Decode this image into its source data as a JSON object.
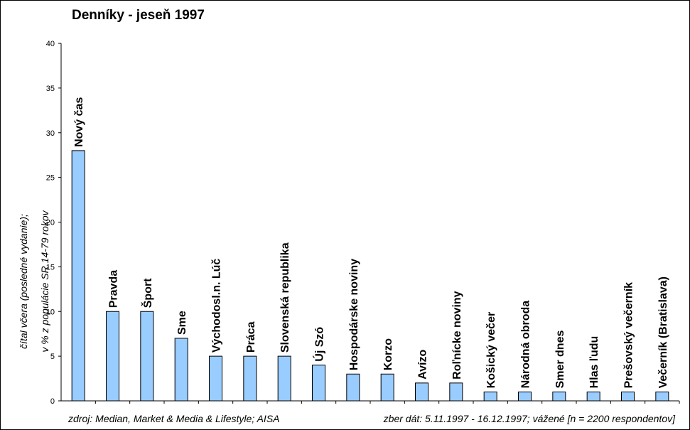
{
  "chart_data": {
    "type": "bar",
    "title": "Denníky - jeseň 1997",
    "ylabel_lines": [
      "čítal včera (posledné vydanie);",
      "v % z populácie SR 14-79 rokov"
    ],
    "xlabel": "",
    "ylim": [
      0,
      40
    ],
    "yticks": [
      0,
      5,
      10,
      15,
      20,
      25,
      30,
      35,
      40
    ],
    "ytick_labels": [
      "0",
      "5",
      "10",
      "15",
      "20",
      "25",
      "30",
      "35",
      "40"
    ],
    "categories": [
      "Nový čas",
      "Pravda",
      "Šport",
      "Sme",
      "Východosl.n. Lúč",
      "Práca",
      "Slovenská republika",
      "Új Szó",
      "Hospodárske noviny",
      "Korzo",
      "Avízo",
      "Roľnícke noviny",
      "Košický večer",
      "Národná obroda",
      "Smer dnes",
      "Hlas ľudu",
      "Prešovský večerník",
      "Večerník (Bratislava)"
    ],
    "values": [
      28,
      10,
      10,
      7,
      5,
      5,
      5,
      4,
      3,
      3,
      2,
      2,
      1,
      1,
      1,
      1,
      1,
      1
    ],
    "grid": false,
    "legend": "none",
    "colors": {
      "bar_fill": "#99ccff",
      "bar_stroke": "#000000",
      "axis": "#000000"
    }
  },
  "footer": {
    "source": "zdroj: Median, Market & Media & Lifestyle; AISA",
    "collection": "zber dát: 5.11.1997 - 16.12.1997; vážené [n = 2200 respondentov]"
  }
}
